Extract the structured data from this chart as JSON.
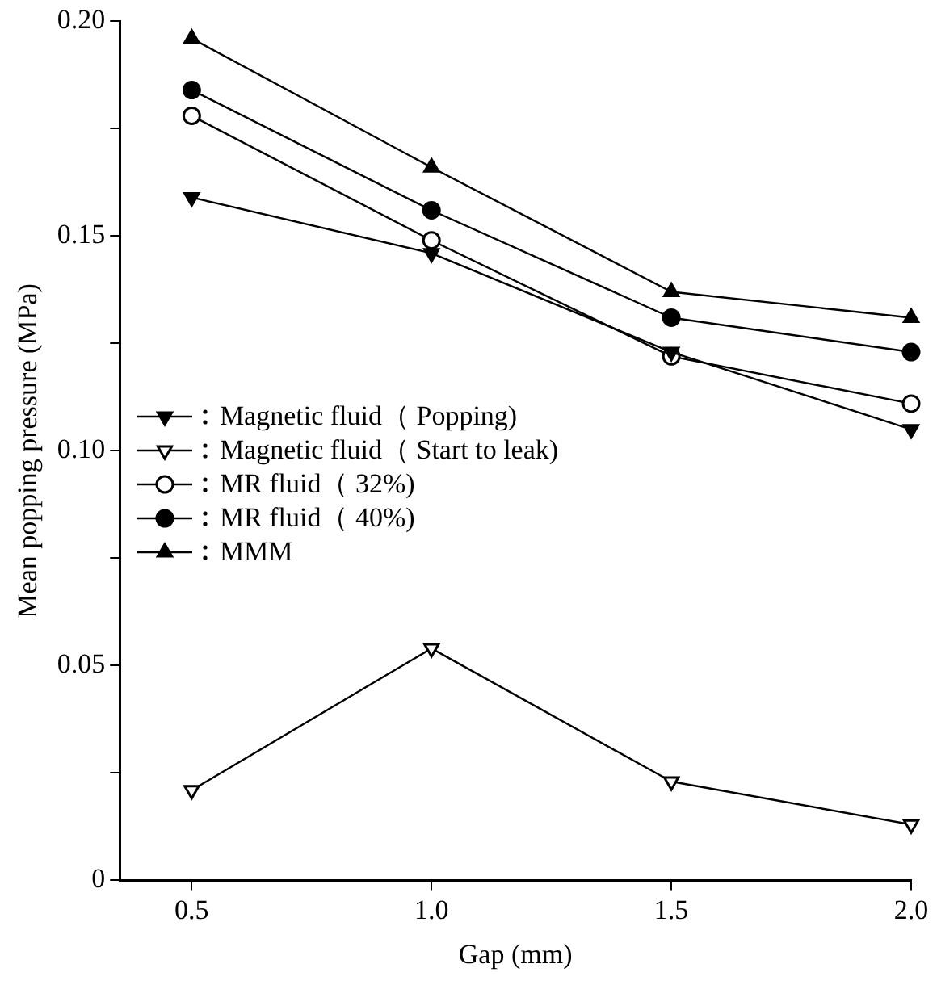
{
  "chart_data": {
    "type": "line",
    "xlabel": "Gap (mm)",
    "ylabel": "Mean popping pressure (MPa)",
    "x": [
      0.5,
      1.0,
      1.5,
      2.0
    ],
    "xlim": [
      0.35,
      2.0
    ],
    "xticks": [
      0.5,
      {
        "value": 1,
        "label": "1.0"
      },
      1.5,
      {
        "value": 2,
        "label": "2.0"
      }
    ],
    "ylim": [
      0,
      0.2
    ],
    "yticks": [
      {
        "value": 0,
        "label": "0"
      },
      {
        "value": 0.025,
        "label": null
      },
      {
        "value": 0.05,
        "label": "0.05"
      },
      {
        "value": 0.075,
        "label": null
      },
      {
        "value": 0.1,
        "label": "0.10"
      },
      {
        "value": 0.125,
        "label": null
      },
      {
        "value": 0.15,
        "label": "0.15"
      },
      {
        "value": 0.175,
        "label": null
      },
      {
        "value": 0.2,
        "label": "0.20"
      }
    ],
    "grid": false,
    "legend": "left",
    "line_style": "solid",
    "series": [
      {
        "name": "Magnetic fluid（ Popping)",
        "color": "#000000",
        "marker": "triangle-down",
        "values": [
          0.159,
          0.146,
          0.123,
          0.105
        ]
      },
      {
        "name": "Magnetic fluid（ Start to leak)",
        "color": "#000000",
        "marker": "triangle-down-open",
        "values": [
          0.021,
          0.054,
          0.023,
          0.013
        ]
      },
      {
        "name": "MR fluid（ 32%)",
        "color": "#000000",
        "marker": "circle-open",
        "values": [
          0.178,
          0.149,
          0.122,
          0.111
        ]
      },
      {
        "name": "MR fluid（ 40%)",
        "color": "#000000",
        "marker": "circle",
        "values": [
          0.184,
          0.156,
          0.131,
          0.123
        ]
      },
      {
        "name": "MMM",
        "color": "#000000",
        "marker": "triangle",
        "values": [
          0.196,
          0.166,
          0.137,
          0.131
        ]
      }
    ]
  }
}
